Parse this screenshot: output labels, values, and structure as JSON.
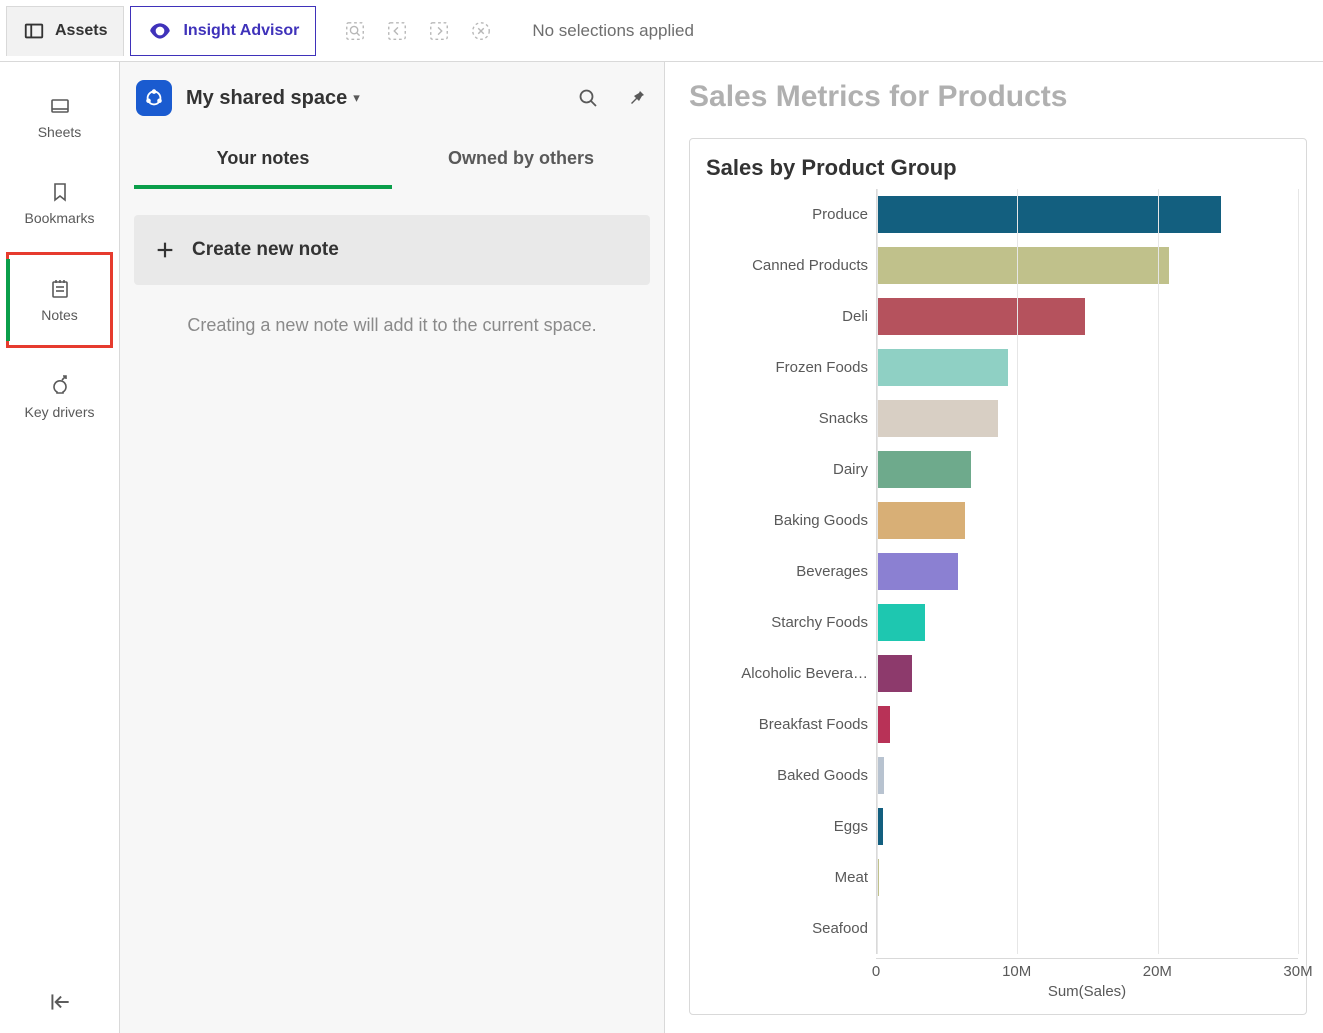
{
  "toolbar": {
    "assets_label": "Assets",
    "insight_label": "Insight Advisor",
    "no_selections": "No selections applied"
  },
  "rail": {
    "items": [
      {
        "label": "Sheets"
      },
      {
        "label": "Bookmarks"
      },
      {
        "label": "Notes"
      },
      {
        "label": "Key drivers"
      }
    ]
  },
  "notes_panel": {
    "space_name": "My shared space",
    "tabs": {
      "your_notes": "Your notes",
      "owned_by_others": "Owned by others"
    },
    "create_label": "Create new note",
    "hint": "Creating a new note will add it to the current space."
  },
  "chart_panel": {
    "metrics_title": "Sales Metrics for Products",
    "chart": {
      "type": "bar-horizontal",
      "title": "Sales by Product Group",
      "x_label": "Sum(Sales)",
      "x_max": 30000000,
      "x_ticks": [
        {
          "value": 0,
          "label": "0"
        },
        {
          "value": 10000000,
          "label": "10M"
        },
        {
          "value": 20000000,
          "label": "20M"
        },
        {
          "value": 30000000,
          "label": "30M"
        }
      ],
      "grid_color": "#e6e6e6",
      "label_fontsize": 15,
      "label_color": "#595959",
      "bars": [
        {
          "label": "Produce",
          "value": 24500000,
          "color": "#135f7f"
        },
        {
          "label": "Canned Products",
          "value": 20800000,
          "color": "#c0c18b"
        },
        {
          "label": "Deli",
          "value": 14800000,
          "color": "#b5525d"
        },
        {
          "label": "Frozen Foods",
          "value": 9300000,
          "color": "#8fd0c4"
        },
        {
          "label": "Snacks",
          "value": 8600000,
          "color": "#d8cfc4"
        },
        {
          "label": "Dairy",
          "value": 6700000,
          "color": "#6eaa8c"
        },
        {
          "label": "Baking Goods",
          "value": 6300000,
          "color": "#d8af76"
        },
        {
          "label": "Beverages",
          "value": 5800000,
          "color": "#8b80d2"
        },
        {
          "label": "Starchy Foods",
          "value": 3400000,
          "color": "#1ec7b0"
        },
        {
          "label": "Alcoholic Bevera…",
          "value": 2500000,
          "color": "#8d3a6c"
        },
        {
          "label": "Breakfast Foods",
          "value": 900000,
          "color": "#b83257"
        },
        {
          "label": "Baked Goods",
          "value": 500000,
          "color": "#b8c3d0"
        },
        {
          "label": "Eggs",
          "value": 450000,
          "color": "#135f7f"
        },
        {
          "label": "Meat",
          "value": 150000,
          "color": "#c0c18b"
        },
        {
          "label": "Seafood",
          "value": 100000,
          "color": "#b5525d"
        }
      ]
    }
  }
}
